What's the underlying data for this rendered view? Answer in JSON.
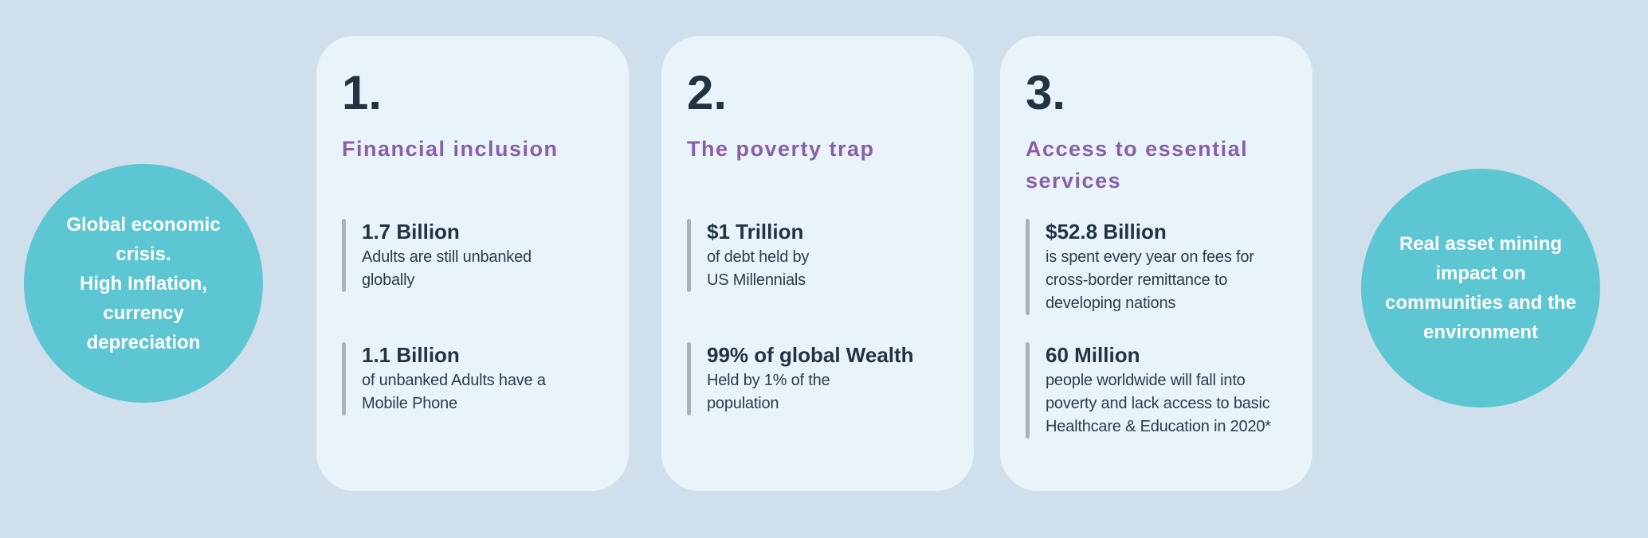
{
  "left_circle": {
    "text": "Global economic\ncrisis.\nHigh Inflation,\ncurrency\ndepreciation"
  },
  "right_circle": {
    "text": "Real asset  mining\nimpact on\ncommunities and the\nenvironment"
  },
  "cards": [
    {
      "number": "1.",
      "title": "Financial inclusion",
      "stats": [
        {
          "value": "1.7 Billion",
          "desc": "Adults are still unbanked\nglobally"
        },
        {
          "value": "1.1 Billion",
          "desc": "of unbanked Adults have a\nMobile Phone"
        }
      ]
    },
    {
      "number": "2.",
      "title": "The poverty trap",
      "stats": [
        {
          "value": "$1 Trillion",
          "desc": "of debt held by\nUS Millennials"
        },
        {
          "value": "99% of global Wealth",
          "desc": "Held by 1% of the\npopulation"
        }
      ]
    },
    {
      "number": "3.",
      "title": "Access to essential\nservices",
      "stats": [
        {
          "value": "$52.8 Billion",
          "desc": "is spent every year on fees for\ncross-border remittance to\ndeveloping nations"
        },
        {
          "value": "60 Million",
          "desc": "people worldwide will fall into\npoverty and lack access to basic\nHealthcare & Education in 2020*"
        }
      ]
    }
  ],
  "colors": {
    "page_background": "#cfdfeb",
    "card_background": "#e9f4fa",
    "circle_teal": "#5cc6d2",
    "heading_purple": "#8a5fa8",
    "text_navy": "#233340",
    "accent_bar_gray": "#a8b2b8",
    "circle_text_white": "#ffffff"
  }
}
